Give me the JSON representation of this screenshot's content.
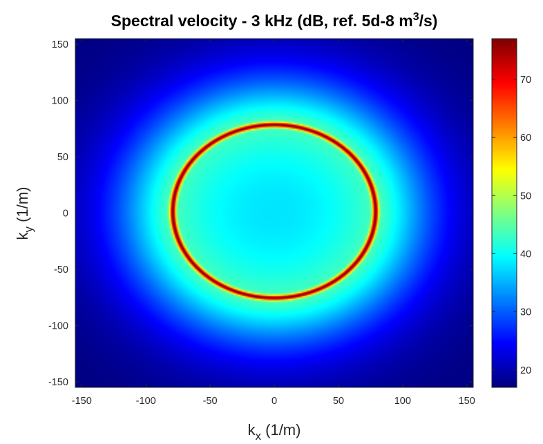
{
  "chart_data": {
    "type": "heatmap",
    "title": "Spectral velocity - 3 kHz (dB, ref. 5d-8 m",
    "title_superscript": "3",
    "title_suffix": "/s)",
    "xlabel": {
      "main": "k",
      "sub": "x",
      "unit": " (1/m)"
    },
    "ylabel": {
      "main": "k",
      "sub": "y",
      "unit": " (1/m)"
    },
    "xlim": [
      -155,
      155
    ],
    "ylim": [
      -155,
      155
    ],
    "x_ticks": [
      -150,
      -100,
      -50,
      0,
      50,
      100,
      150
    ],
    "y_ticks": [
      150,
      100,
      50,
      0,
      -50,
      -100,
      -150
    ],
    "colormap": "jet",
    "colorbar": {
      "range": [
        17,
        77
      ],
      "ticks": [
        20,
        30,
        40,
        50,
        60,
        70
      ],
      "position": "right"
    },
    "field": {
      "description_values": {
        "background_level_db": 17,
        "center_level_db": 38,
        "ring_peak_db": 77,
        "ring_radius_x": 79,
        "ring_radius_y": 77,
        "ring_center": [
          0,
          1.5
        ]
      }
    }
  }
}
